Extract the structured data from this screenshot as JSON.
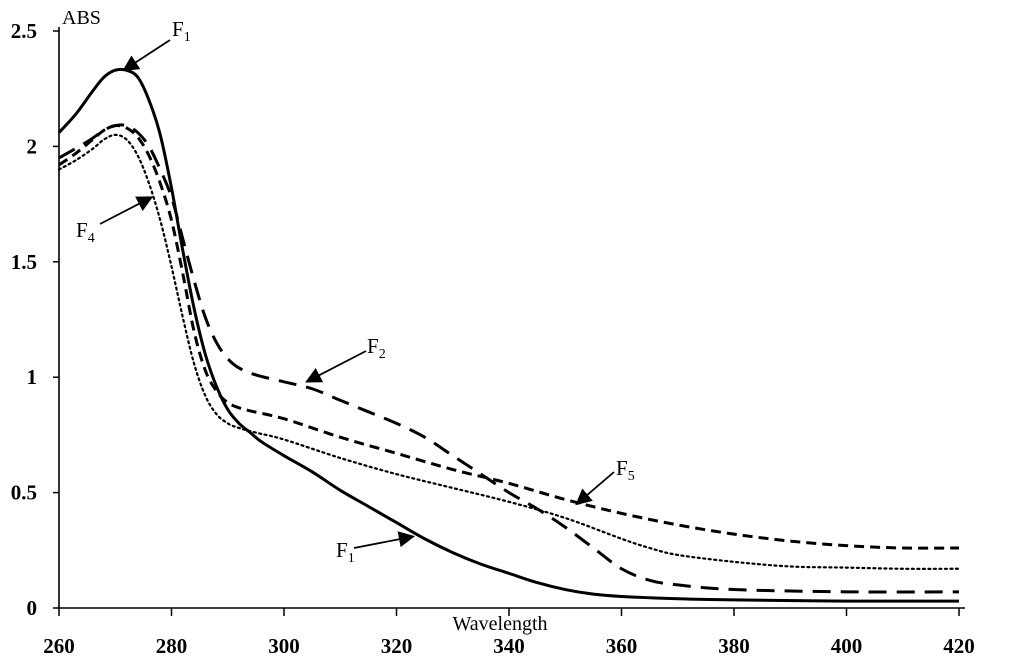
{
  "chart_data": {
    "type": "line",
    "title": "",
    "xlabel": "Wavelength",
    "ylabel": "ABS",
    "xlim": [
      260,
      420
    ],
    "ylim": [
      0,
      2.5
    ],
    "x_ticks": [
      "260",
      "280",
      "300",
      "320",
      "340",
      "360",
      "380",
      "400",
      "420"
    ],
    "y_ticks": [
      "0",
      "0.5",
      "1",
      "1.5",
      "2",
      "2.5"
    ],
    "grid": false,
    "legend": "none",
    "series": [
      {
        "name": "F1",
        "style": "solid",
        "color": "#000000",
        "points": [
          [
            260,
            2.06
          ],
          [
            263,
            2.14
          ],
          [
            266,
            2.24
          ],
          [
            268,
            2.3
          ],
          [
            270,
            2.33
          ],
          [
            272,
            2.33
          ],
          [
            274,
            2.3
          ],
          [
            276,
            2.2
          ],
          [
            278,
            2.05
          ],
          [
            280,
            1.82
          ],
          [
            282,
            1.55
          ],
          [
            284,
            1.3
          ],
          [
            286,
            1.1
          ],
          [
            288,
            0.96
          ],
          [
            290,
            0.86
          ],
          [
            292,
            0.8
          ],
          [
            294,
            0.76
          ],
          [
            296,
            0.72
          ],
          [
            300,
            0.66
          ],
          [
            305,
            0.59
          ],
          [
            310,
            0.51
          ],
          [
            315,
            0.44
          ],
          [
            320,
            0.37
          ],
          [
            325,
            0.3
          ],
          [
            330,
            0.24
          ],
          [
            335,
            0.19
          ],
          [
            340,
            0.15
          ],
          [
            345,
            0.11
          ],
          [
            350,
            0.08
          ],
          [
            355,
            0.06
          ],
          [
            360,
            0.05
          ],
          [
            370,
            0.04
          ],
          [
            380,
            0.035
          ],
          [
            400,
            0.03
          ],
          [
            420,
            0.03
          ]
        ]
      },
      {
        "name": "F2",
        "style": "long-dash",
        "color": "#000000",
        "points": [
          [
            260,
            1.95
          ],
          [
            265,
            2.02
          ],
          [
            268,
            2.07
          ],
          [
            270,
            2.09
          ],
          [
            272,
            2.09
          ],
          [
            274,
            2.06
          ],
          [
            276,
            2.0
          ],
          [
            278,
            1.9
          ],
          [
            280,
            1.78
          ],
          [
            282,
            1.6
          ],
          [
            284,
            1.42
          ],
          [
            286,
            1.26
          ],
          [
            288,
            1.15
          ],
          [
            290,
            1.08
          ],
          [
            292,
            1.04
          ],
          [
            295,
            1.01
          ],
          [
            300,
            0.98
          ],
          [
            305,
            0.95
          ],
          [
            310,
            0.9
          ],
          [
            315,
            0.85
          ],
          [
            320,
            0.8
          ],
          [
            325,
            0.74
          ],
          [
            330,
            0.66
          ],
          [
            335,
            0.58
          ],
          [
            340,
            0.5
          ],
          [
            345,
            0.43
          ],
          [
            350,
            0.35
          ],
          [
            355,
            0.26
          ],
          [
            360,
            0.17
          ],
          [
            365,
            0.12
          ],
          [
            370,
            0.1
          ],
          [
            380,
            0.08
          ],
          [
            400,
            0.07
          ],
          [
            420,
            0.07
          ]
        ]
      },
      {
        "name": "F4",
        "style": "dotted",
        "color": "#000000",
        "points": [
          [
            260,
            1.9
          ],
          [
            263,
            1.94
          ],
          [
            266,
            1.99
          ],
          [
            268,
            2.03
          ],
          [
            270,
            2.05
          ],
          [
            272,
            2.03
          ],
          [
            274,
            1.96
          ],
          [
            276,
            1.84
          ],
          [
            278,
            1.68
          ],
          [
            280,
            1.48
          ],
          [
            282,
            1.26
          ],
          [
            284,
            1.06
          ],
          [
            286,
            0.92
          ],
          [
            288,
            0.84
          ],
          [
            290,
            0.8
          ],
          [
            292,
            0.78
          ],
          [
            295,
            0.76
          ],
          [
            300,
            0.73
          ],
          [
            310,
            0.65
          ],
          [
            320,
            0.58
          ],
          [
            330,
            0.52
          ],
          [
            340,
            0.46
          ],
          [
            350,
            0.39
          ],
          [
            360,
            0.3
          ],
          [
            365,
            0.26
          ],
          [
            370,
            0.23
          ],
          [
            380,
            0.2
          ],
          [
            390,
            0.18
          ],
          [
            400,
            0.175
          ],
          [
            410,
            0.17
          ],
          [
            420,
            0.17
          ]
        ]
      },
      {
        "name": "F5",
        "style": "short-dash",
        "color": "#000000",
        "points": [
          [
            260,
            1.92
          ],
          [
            263,
            1.97
          ],
          [
            266,
            2.03
          ],
          [
            268,
            2.07
          ],
          [
            270,
            2.09
          ],
          [
            272,
            2.08
          ],
          [
            274,
            2.04
          ],
          [
            276,
            1.96
          ],
          [
            278,
            1.84
          ],
          [
            280,
            1.68
          ],
          [
            282,
            1.45
          ],
          [
            284,
            1.2
          ],
          [
            286,
            1.03
          ],
          [
            288,
            0.94
          ],
          [
            290,
            0.89
          ],
          [
            293,
            0.86
          ],
          [
            300,
            0.82
          ],
          [
            310,
            0.74
          ],
          [
            320,
            0.67
          ],
          [
            330,
            0.6
          ],
          [
            340,
            0.54
          ],
          [
            350,
            0.47
          ],
          [
            360,
            0.41
          ],
          [
            370,
            0.36
          ],
          [
            380,
            0.32
          ],
          [
            390,
            0.29
          ],
          [
            400,
            0.27
          ],
          [
            410,
            0.26
          ],
          [
            420,
            0.26
          ]
        ]
      }
    ],
    "annotations": [
      {
        "label": "F",
        "sub": "1",
        "target": [
          271.5,
          2.33
        ]
      },
      {
        "label": "F",
        "sub": "4",
        "target": [
          276.5,
          1.78
        ]
      },
      {
        "label": "F",
        "sub": "2",
        "target": [
          304,
          0.98
        ]
      },
      {
        "label": "F",
        "sub": "5",
        "target": [
          352,
          0.45
        ]
      },
      {
        "label": "F",
        "sub": "1",
        "target": [
          323,
          0.31
        ]
      }
    ]
  }
}
